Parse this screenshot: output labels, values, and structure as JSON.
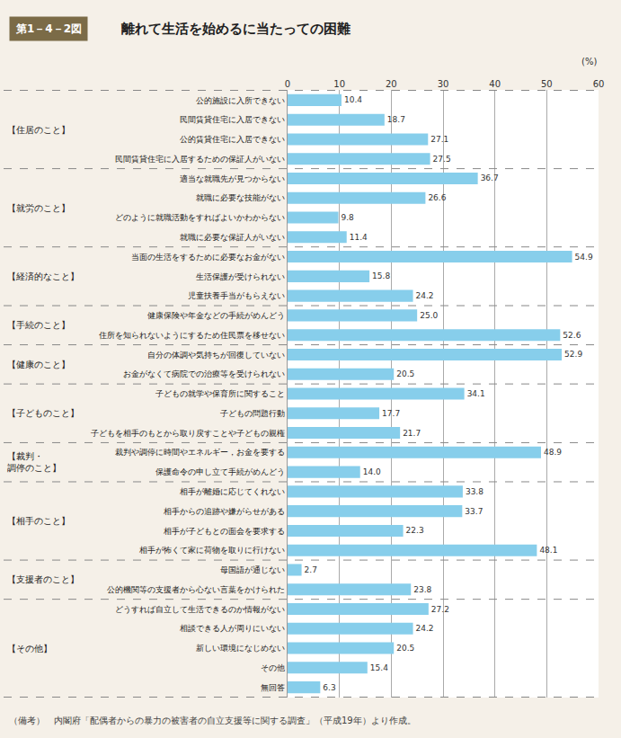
{
  "chart_data": {
    "type": "bar",
    "orientation": "horizontal",
    "title": "離れて生活を始めるに当たっての困難",
    "subtitle": "第1－4－2図",
    "xlabel": "(%)",
    "note": "（備考）　内閣府「配偶者からの暴力の被害者の自立支援等に関する調査」（平成19年）より作成。",
    "categories": [
      "公的施設に入所できない",
      "民間賃貸住宅に入居できない",
      "公的賃貸住宅に入居できない",
      "民間賃貸住宅に入居するための保証人がいない",
      "適当な就職先が見つからない",
      "就職に必要な技能がない",
      "どのように就職活動をすればよいかわからない",
      "就職に必要な保証人がいない",
      "当面の生活をするために必要なお金がない",
      "生活保護が受けられない",
      "児童扶養手当がもらえない",
      "健康保険や年金などの手続がめんどう",
      "住所を知られないようにするため住民票を移せない",
      "自分の体調や気持ちが回復していない",
      "お金がなくて病院での治療等を受けられない",
      "子どもの就学や保育所に関すること",
      "子どもの問題行動",
      "子どもを相手のもとから取り戻すことや子どもの親権",
      "裁判や調停に時間やエネルギー，お金を要する",
      "保護命令の申し立て手続がめんどう",
      "相手が離婚に応じてくれない",
      "相手からの追跡や嫌がらせがある",
      "相手が子どもとの面会を要求する",
      "相手が怖くて家に荷物を取りに行けない",
      "母国語が通じない",
      "公的機関等の支援者から心ない言葉をかけられた",
      "どうすれば自立して生活できるのか情報がない",
      "相談できる人が周りにいない",
      "新しい環境になじめない",
      "その他",
      "無回答"
    ],
    "values": [
      10.4,
      18.7,
      27.1,
      27.5,
      36.7,
      26.6,
      9.8,
      11.4,
      54.9,
      15.8,
      24.2,
      25.0,
      52.6,
      52.9,
      20.5,
      34.1,
      17.7,
      21.7,
      48.9,
      14.0,
      33.8,
      33.7,
      22.3,
      48.1,
      2.7,
      23.8,
      27.2,
      24.2,
      20.5,
      15.4,
      6.3
    ],
    "value_labels": [
      "10.4",
      "18.7",
      "27.1",
      "27.5",
      "36.7",
      "26.6",
      "9.8",
      "11.4",
      "54.9",
      "15.8",
      "24.2",
      "25.0",
      "52.6",
      "52.9",
      "20.5",
      "34.1",
      "17.7",
      "21.7",
      "48.9",
      "14.0",
      "33.8",
      "33.7",
      "22.3",
      "48.1",
      "2.7",
      "23.8",
      "27.2",
      "24.2",
      "20.5",
      "15.4",
      "6.3"
    ],
    "color": "#87CEEB",
    "xlim": [
      0,
      60
    ],
    "xticks": [
      0,
      10,
      20,
      30,
      40,
      50,
      60
    ],
    "grid": true,
    "data_labels": true,
    "annotations": [
      {
        "text": "【住居のこと】",
        "categories": [
          "公的施設に入所できない",
          "民間賃貸住宅に入居するための保証人がいない"
        ]
      },
      {
        "text": "【就労のこと】",
        "categories": [
          "適当な就職先が見つからない",
          "就職に必要な保証人がいない"
        ]
      },
      {
        "text": "【経済的なこと】",
        "categories": [
          "当面の生活をするために必要なお金がない",
          "児童扶養手当がもらえない"
        ]
      },
      {
        "text": "【手続のこと】",
        "categories": [
          "健康保険や年金などの手続がめんどう",
          "住所を知られないようにするため住民票を移せない"
        ]
      },
      {
        "text": "【健康のこと】",
        "categories": [
          "自分の体調や気持ちが回復していない",
          "お金がなくて病院での治療等を受けられない"
        ]
      },
      {
        "text": "【子どものこと】",
        "categories": [
          "子どもの就学や保育所に関すること",
          "子どもを相手のもとから取り戻すことや子どもの親権"
        ]
      },
      {
        "text": "【裁判・\n調停のこと】",
        "categories": [
          "裁判や調停に時間やエネルギー，お金を要する",
          "保護命令の申し立て手続がめんどう"
        ]
      },
      {
        "text": "【相手のこと】",
        "categories": [
          "相手が離婚に応じてくれない",
          "相手が怖くて家に荷物を取りに行けない"
        ]
      },
      {
        "text": "【支援者のこと】",
        "categories": [
          "母国語が通じない",
          "公的機関等の支援者から心ない言葉をかけられた"
        ]
      },
      {
        "text": "【その他】",
        "categories": [
          "どうすれば自立して生活できるのか情報がない",
          "無回答"
        ]
      }
    ]
  }
}
